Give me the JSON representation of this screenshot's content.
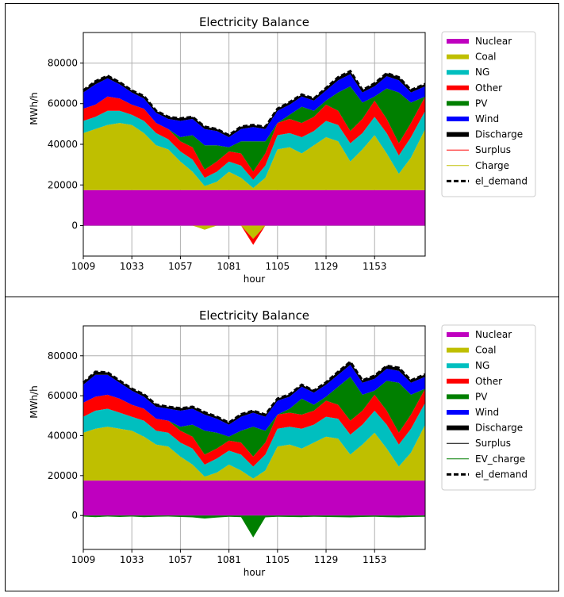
{
  "chart_data": [
    {
      "type": "area",
      "title": "Electricity Balance",
      "xlabel": "hour",
      "ylabel": "MWh/h",
      "xlim": [
        1009,
        1178
      ],
      "ylim": [
        -15000,
        95000
      ],
      "xticks": [
        "1009",
        "1033",
        "1057",
        "1081",
        "1105",
        "1129",
        "1153"
      ],
      "yticks": [
        "0",
        "20000",
        "40000",
        "60000",
        "80000"
      ],
      "grid": true,
      "legend_position": "outside right",
      "legend": [
        "Nuclear",
        "Coal",
        "NG",
        "Other",
        "PV",
        "Wind",
        "Discharge",
        "Surplus",
        "Charge",
        "el_demand"
      ],
      "x": [
        1009,
        1015,
        1021,
        1027,
        1033,
        1039,
        1045,
        1051,
        1057,
        1063,
        1069,
        1075,
        1081,
        1087,
        1093,
        1099,
        1105,
        1111,
        1117,
        1123,
        1129,
        1135,
        1141,
        1147,
        1153,
        1159,
        1165,
        1171,
        1178
      ],
      "series": [
        {
          "name": "Nuclear",
          "color": "#bf00bf",
          "values": [
            17500,
            17500,
            17500,
            17500,
            17500,
            17500,
            17500,
            17500,
            17500,
            17500,
            17500,
            17500,
            17500,
            17500,
            17500,
            17500,
            17500,
            17500,
            17500,
            17500,
            17500,
            17500,
            17500,
            17500,
            17500,
            17500,
            17500,
            17500,
            17500
          ]
        },
        {
          "name": "Coal",
          "color": "#bfbf00",
          "values": [
            28000,
            30000,
            32000,
            33000,
            32000,
            28000,
            22000,
            20000,
            14000,
            9000,
            2000,
            4000,
            9000,
            6000,
            1000,
            6000,
            20000,
            21000,
            18000,
            22000,
            26000,
            24000,
            14000,
            20000,
            27000,
            18000,
            8000,
            16000,
            30000
          ]
        },
        {
          "name": "NG",
          "color": "#00bfbf",
          "values": [
            6000,
            6000,
            7000,
            6000,
            5000,
            6000,
            6000,
            5000,
            5000,
            6000,
            4000,
            5000,
            5000,
            6000,
            4000,
            6000,
            7000,
            7000,
            8000,
            7000,
            8000,
            8000,
            9000,
            8000,
            9000,
            10000,
            9000,
            10000,
            9000
          ]
        },
        {
          "name": "Other",
          "color": "#ff0000",
          "values": [
            6000,
            6000,
            7000,
            6000,
            5000,
            6000,
            5000,
            5000,
            5000,
            6000,
            4000,
            5000,
            5000,
            6000,
            4000,
            6000,
            6000,
            7000,
            7000,
            7000,
            8000,
            7000,
            6000,
            7000,
            8000,
            7000,
            6000,
            7000,
            7000
          ]
        },
        {
          "name": "PV",
          "color": "#007f00",
          "values": [
            0,
            0,
            0,
            0,
            0,
            0,
            0,
            0,
            2000,
            6000,
            12000,
            8000,
            2000,
            6000,
            15000,
            6000,
            0,
            2000,
            8000,
            3000,
            2000,
            9000,
            22000,
            8000,
            2000,
            15000,
            25000,
            10000,
            0
          ]
        },
        {
          "name": "Wind",
          "color": "#0000ff",
          "values": [
            8000,
            10000,
            9000,
            7000,
            6000,
            5000,
            5000,
            5000,
            8000,
            8000,
            8000,
            7000,
            5000,
            6000,
            7000,
            6000,
            6000,
            5000,
            5000,
            5000,
            5000,
            6000,
            6000,
            5000,
            5000,
            6000,
            6000,
            5000,
            5000
          ]
        },
        {
          "name": "Discharge",
          "color": "#000000",
          "values": [
            1000,
            1500,
            1200,
            1000,
            1000,
            1200,
            1000,
            1000,
            1200,
            1000,
            1200,
            1000,
            1000,
            1200,
            1000,
            1000,
            1000,
            1200,
            1000,
            1000,
            1200,
            1500,
            1500,
            1200,
            1500,
            1500,
            1500,
            1200,
            1200
          ]
        }
      ],
      "negative_series": [
        {
          "name": "Charge",
          "color": "#bfbf00",
          "values": [
            0,
            0,
            0,
            0,
            0,
            0,
            0,
            0,
            0,
            0,
            -2000,
            0,
            0,
            0,
            -6500,
            0,
            0,
            0,
            0,
            0,
            0,
            0,
            0,
            0,
            0,
            0,
            0,
            0,
            0
          ]
        },
        {
          "name": "Surplus",
          "color": "#ff0000",
          "values": [
            0,
            0,
            0,
            0,
            0,
            0,
            0,
            0,
            0,
            0,
            0,
            0,
            0,
            0,
            -3000,
            0,
            0,
            0,
            0,
            0,
            0,
            0,
            0,
            0,
            0,
            0,
            0,
            0,
            0
          ]
        }
      ]
    },
    {
      "type": "area",
      "title": "Electricity Balance",
      "xlabel": "hour",
      "ylabel": "MWh/h",
      "xlim": [
        1009,
        1178
      ],
      "ylim": [
        -17000,
        95000
      ],
      "xticks": [
        "1009",
        "1033",
        "1057",
        "1081",
        "1105",
        "1129",
        "1153"
      ],
      "yticks": [
        "0",
        "20000",
        "40000",
        "60000",
        "80000"
      ],
      "grid": true,
      "legend_position": "outside right",
      "legend": [
        "Nuclear",
        "Coal",
        "NG",
        "Other",
        "PV",
        "Wind",
        "Discharge",
        "Surplus",
        "EV_charge",
        "el_demand"
      ],
      "x": [
        1009,
        1015,
        1021,
        1027,
        1033,
        1039,
        1045,
        1051,
        1057,
        1063,
        1069,
        1075,
        1081,
        1087,
        1093,
        1099,
        1105,
        1111,
        1117,
        1123,
        1129,
        1135,
        1141,
        1147,
        1153,
        1159,
        1165,
        1171,
        1178
      ],
      "series": [
        {
          "name": "Nuclear",
          "color": "#bf00bf",
          "values": [
            17500,
            17500,
            17500,
            17500,
            17500,
            17500,
            17500,
            17500,
            17500,
            17500,
            17500,
            17500,
            17500,
            17500,
            17500,
            17500,
            17500,
            17500,
            17500,
            17500,
            17500,
            17500,
            17500,
            17500,
            17500,
            17500,
            17500,
            17500,
            17500
          ]
        },
        {
          "name": "Coal",
          "color": "#bfbf00",
          "values": [
            24000,
            26000,
            27000,
            26000,
            25000,
            22000,
            18000,
            17000,
            12000,
            8000,
            2000,
            4000,
            8000,
            5000,
            1000,
            5000,
            17000,
            18000,
            16000,
            19000,
            22000,
            21000,
            13000,
            18000,
            24000,
            16000,
            7000,
            14000,
            28000
          ]
        },
        {
          "name": "NG",
          "color": "#00bfbf",
          "values": [
            8000,
            9000,
            9000,
            8000,
            7000,
            8000,
            7000,
            7000,
            7000,
            8000,
            6000,
            7000,
            7000,
            8000,
            6000,
            8000,
            9000,
            9000,
            10000,
            9000,
            10000,
            10000,
            10000,
            10000,
            11000,
            12000,
            11000,
            12000,
            11000
          ]
        },
        {
          "name": "Other",
          "color": "#ff0000",
          "values": [
            7000,
            7000,
            7000,
            7000,
            6000,
            6000,
            6000,
            6000,
            6000,
            6000,
            5000,
            5000,
            5000,
            6000,
            5000,
            6000,
            7000,
            7000,
            7000,
            7000,
            8000,
            7000,
            7000,
            7000,
            8000,
            7000,
            6000,
            7000,
            7000
          ]
        },
        {
          "name": "PV",
          "color": "#007f00",
          "values": [
            0,
            0,
            0,
            0,
            0,
            0,
            0,
            0,
            2000,
            6000,
            12000,
            8000,
            2000,
            6000,
            15000,
            6000,
            0,
            2000,
            8000,
            3000,
            2000,
            9000,
            22000,
            8000,
            2000,
            15000,
            25000,
            10000,
            0
          ]
        },
        {
          "name": "Wind",
          "color": "#0000ff",
          "values": [
            9000,
            11000,
            10000,
            8000,
            7000,
            6000,
            6000,
            6000,
            8000,
            8000,
            8000,
            7000,
            6000,
            7000,
            7000,
            7000,
            7000,
            6000,
            6000,
            6000,
            6000,
            6000,
            6000,
            6000,
            6000,
            6000,
            6000,
            6000,
            6000
          ]
        },
        {
          "name": "Discharge",
          "color": "#000000",
          "values": [
            1000,
            1500,
            1200,
            1000,
            1000,
            1200,
            1000,
            1000,
            1200,
            1000,
            1200,
            1000,
            1000,
            1200,
            1000,
            1000,
            1000,
            1200,
            1000,
            1000,
            1200,
            1500,
            1500,
            1200,
            1500,
            1500,
            1500,
            1200,
            1200
          ]
        }
      ],
      "negative_series": [
        {
          "name": "EV_charge",
          "color": "#007f00",
          "values": [
            -500,
            -800,
            -500,
            -700,
            -500,
            -800,
            -600,
            -500,
            -700,
            -900,
            -1500,
            -1000,
            -600,
            -800,
            -11000,
            -900,
            -600,
            -700,
            -800,
            -600,
            -700,
            -800,
            -900,
            -700,
            -600,
            -800,
            -900,
            -700,
            -600
          ]
        }
      ]
    }
  ]
}
